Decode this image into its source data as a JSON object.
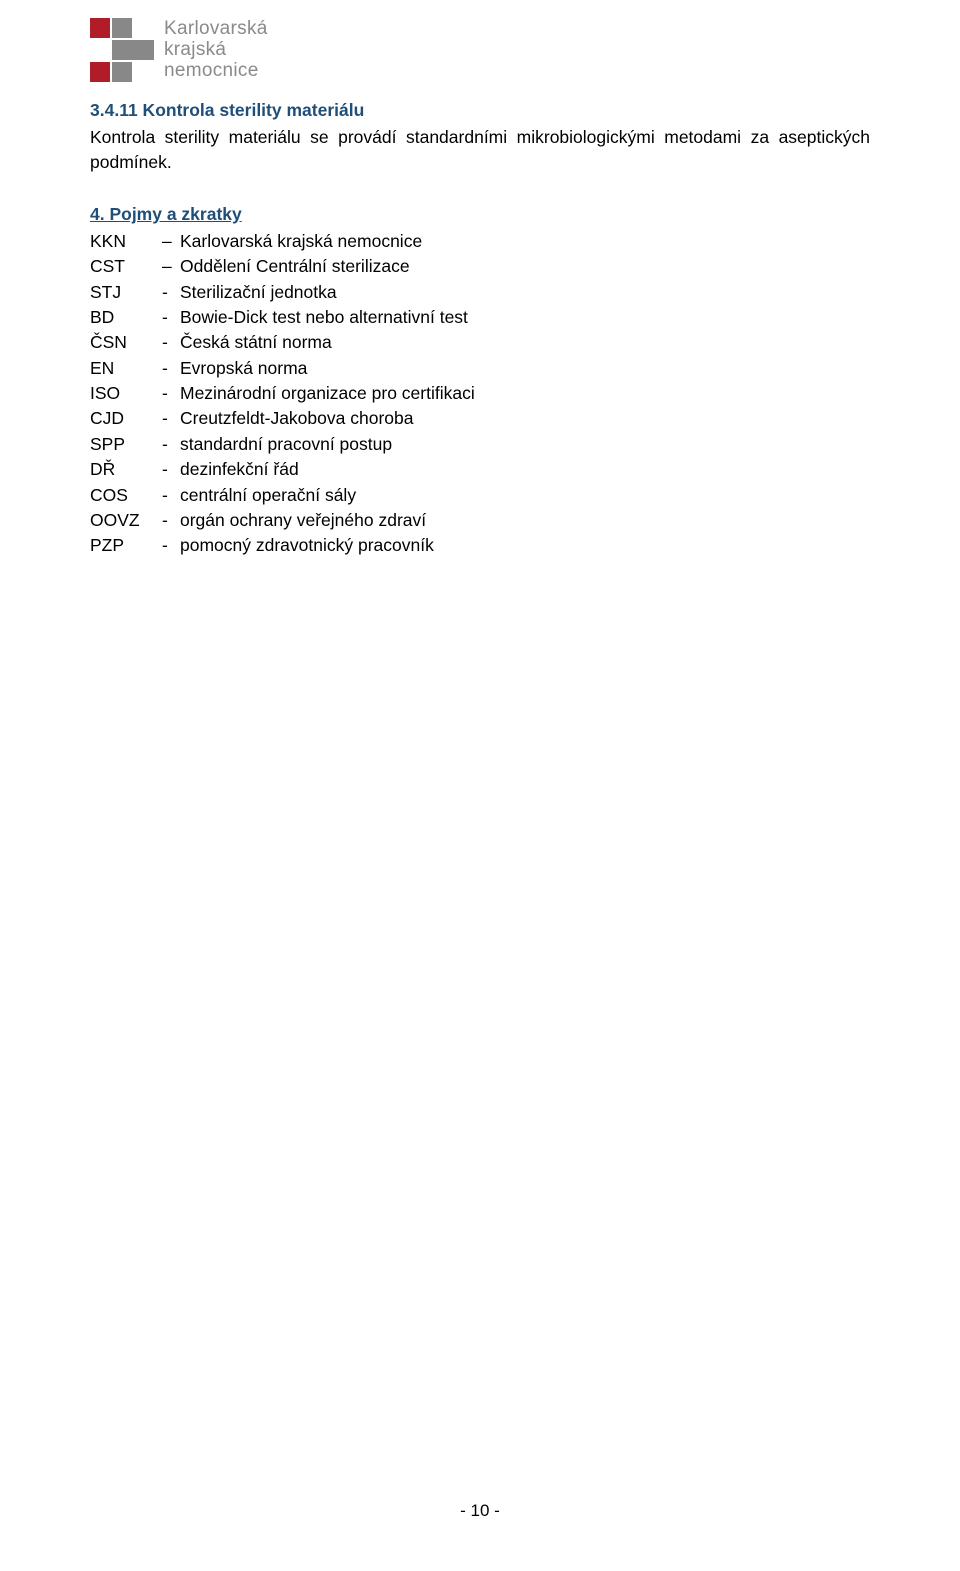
{
  "logo": {
    "line1": "Karlovarská",
    "line2": "krajská",
    "line3": "nemocnice",
    "colors": {
      "red": "#b01c28",
      "grey": "#888888",
      "text": "#8a8a8a"
    }
  },
  "section1": {
    "heading": "3.4.11 Kontrola sterility materiálu",
    "body": "Kontrola sterility materiálu se provádí standardními mikrobiologickými metodami za aseptických podmínek.",
    "heading_color": "#1f4e79"
  },
  "section2": {
    "heading": "4. Pojmy a zkratky",
    "defs": [
      {
        "abbr": "KKN",
        "sep": "–",
        "desc": "Karlovarská krajská nemocnice"
      },
      {
        "abbr": "CST",
        "sep": "–",
        "desc": "Oddělení Centrální sterilizace"
      },
      {
        "abbr": "STJ",
        "sep": "-",
        "desc": " Sterilizační jednotka"
      },
      {
        "abbr": "BD",
        "sep": "-",
        "desc": " Bowie-Dick test nebo alternativní test"
      },
      {
        "abbr": "ČSN",
        "sep": "-",
        "desc": " Česká státní norma"
      },
      {
        "abbr": "EN",
        "sep": "-",
        "desc": " Evropská norma"
      },
      {
        "abbr": "ISO",
        "sep": "-",
        "desc": " Mezinárodní organizace pro certifikaci"
      },
      {
        "abbr": "CJD",
        "sep": "-",
        "desc": " Creutzfeldt-Jakobova choroba"
      },
      {
        "abbr": "SPP",
        "sep": "-",
        "desc": " standardní pracovní postup"
      },
      {
        "abbr": "DŘ",
        "sep": "-",
        "desc": "dezinfekční řád"
      },
      {
        "abbr": "COS",
        "sep": "-",
        "desc": "centrální operační sály"
      },
      {
        "abbr": "OOVZ",
        "sep": "-",
        "desc": "orgán ochrany veřejného zdraví"
      },
      {
        "abbr": "PZP",
        "sep": "-",
        "desc": "pomocný zdravotnický pracovník"
      }
    ]
  },
  "page_number": "- 10 -"
}
